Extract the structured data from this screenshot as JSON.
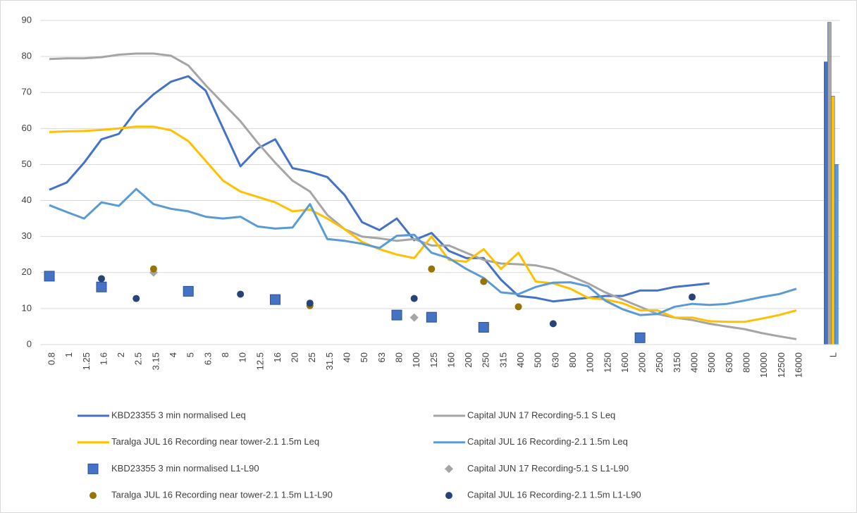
{
  "chart_data": {
    "type": "line",
    "categories": [
      "0.8",
      "1",
      "1.25",
      "1.6",
      "2",
      "2.5",
      "3.15",
      "4",
      "5",
      "6.3",
      "8",
      "10",
      "12.5",
      "16",
      "20",
      "25",
      "31.5",
      "40",
      "50",
      "63",
      "80",
      "100",
      "125",
      "160",
      "200",
      "250",
      "315",
      "400",
      "500",
      "630",
      "800",
      "1000",
      "1250",
      "1600",
      "2000",
      "2500",
      "3150",
      "4000",
      "5000",
      "6300",
      "8000",
      "10000",
      "12500",
      "16000",
      null,
      "L"
    ],
    "ylim": [
      0,
      90
    ],
    "yticks": [
      0,
      10,
      20,
      30,
      40,
      50,
      60,
      70,
      80,
      90
    ],
    "grid": true,
    "last_as_bar": true,
    "series": [
      {
        "name": "KBD23355 3 min normalised Leq",
        "type": "line",
        "color": "#4472c4",
        "values": [
          43,
          45,
          50.5,
          57,
          58.5,
          65,
          69.5,
          73,
          74.5,
          70.5,
          60,
          49.5,
          54.5,
          57,
          49,
          48,
          46.5,
          41.5,
          34,
          31.8,
          35,
          29,
          31,
          26,
          24,
          24,
          18,
          13.5,
          13,
          12,
          12.5,
          13,
          13.5,
          13.5,
          15,
          15,
          16,
          16.5,
          17,
          null,
          null,
          null,
          null,
          null,
          null,
          78.5
        ]
      },
      {
        "name": "Capital JUN 17 Recording-5.1 S Leq",
        "type": "line",
        "color": "#a5a5a5",
        "values": [
          79.3,
          79.5,
          79.5,
          79.8,
          80.5,
          80.8,
          80.8,
          80.2,
          77.5,
          72,
          67,
          62,
          56,
          50.5,
          45.5,
          42.5,
          36,
          32,
          30,
          29.5,
          28.8,
          29.3,
          27.5,
          27.5,
          25.5,
          23.5,
          22.5,
          22.3,
          22,
          21,
          19,
          17,
          14.5,
          12.5,
          10.5,
          8.5,
          7.5,
          6.8,
          5.8,
          5,
          4.3,
          3.2,
          2.3,
          1.5,
          null,
          89.5
        ]
      },
      {
        "name": "Taralga JUL 16 Recording near tower-2.1 1.5m Leq",
        "type": "line",
        "color": "#ffc000",
        "values": [
          59,
          59.2,
          59.3,
          59.6,
          60,
          60.5,
          60.5,
          59.5,
          56.5,
          51,
          45.5,
          42.5,
          41,
          39.5,
          37,
          37.5,
          35,
          32,
          28.5,
          26.5,
          25,
          24,
          30,
          23.5,
          23,
          26.5,
          21,
          25.5,
          17.5,
          17,
          15.5,
          13,
          12.5,
          11.5,
          9.5,
          9.5,
          7.5,
          7.5,
          6.5,
          6.3,
          6.3,
          7.2,
          8.2,
          9.5,
          null,
          69
        ]
      },
      {
        "name": "Capital JUL 16 Recording-2.1 1.5m Leq",
        "type": "line",
        "color": "#5b9bd5",
        "values": [
          38.7,
          36.8,
          35,
          39.5,
          38.5,
          43.2,
          39,
          37.7,
          37,
          35.5,
          35,
          35.5,
          32.8,
          32.2,
          32.5,
          39,
          29.3,
          28.8,
          28,
          26.8,
          30.2,
          30.5,
          25.5,
          24,
          21,
          18.5,
          14.5,
          14,
          16,
          17.2,
          17.3,
          16.2,
          12.2,
          9.8,
          8.2,
          8.5,
          10.5,
          11.3,
          11,
          11.3,
          12.2,
          13.2,
          14,
          15.5,
          null,
          50
        ]
      },
      {
        "name": "KBD23355 3 min normalised L1-L90",
        "type": "scatter",
        "marker": "square",
        "color": "#4472c4",
        "values": [
          19,
          null,
          null,
          16,
          null,
          null,
          null,
          null,
          14.8,
          null,
          null,
          null,
          null,
          12.5,
          null,
          null,
          null,
          null,
          null,
          null,
          8.2,
          null,
          7.6,
          null,
          null,
          4.8,
          null,
          null,
          null,
          null,
          null,
          null,
          null,
          null,
          1.9,
          null,
          null,
          null,
          null,
          null,
          null,
          null,
          null,
          null,
          null,
          null
        ]
      },
      {
        "name": "Capital JUN 17 Recording-5.1 S L1-L90",
        "type": "scatter",
        "marker": "diamond",
        "color": "#a5a5a5",
        "values": [
          null,
          null,
          null,
          null,
          null,
          null,
          20,
          null,
          null,
          null,
          null,
          null,
          null,
          null,
          null,
          null,
          null,
          null,
          null,
          null,
          null,
          7.5,
          null,
          null,
          null,
          null,
          null,
          null,
          null,
          null,
          null,
          null,
          null,
          null,
          null,
          null,
          null,
          null,
          null,
          null,
          null,
          null,
          null,
          null,
          null,
          null
        ]
      },
      {
        "name": "Taralga JUL 16 Recording near tower-2.1 1.5m L1-L90",
        "type": "scatter",
        "marker": "circle",
        "color": "#997300",
        "values": [
          null,
          null,
          null,
          null,
          null,
          null,
          21,
          null,
          null,
          null,
          null,
          null,
          null,
          null,
          null,
          10.8,
          null,
          null,
          null,
          null,
          null,
          null,
          21,
          null,
          null,
          17.5,
          null,
          10.5,
          null,
          null,
          null,
          null,
          null,
          null,
          null,
          null,
          null,
          null,
          null,
          null,
          null,
          null,
          null,
          null,
          null,
          null
        ]
      },
      {
        "name": "Capital JUL 16 Recording-2.1 1.5m L1-L90",
        "type": "scatter",
        "marker": "circle",
        "color": "#264478",
        "values": [
          null,
          null,
          null,
          18.3,
          null,
          12.8,
          null,
          null,
          null,
          null,
          null,
          14,
          null,
          null,
          null,
          11.5,
          null,
          null,
          null,
          null,
          null,
          12.8,
          null,
          null,
          null,
          null,
          null,
          null,
          null,
          5.8,
          null,
          null,
          null,
          null,
          null,
          null,
          null,
          13.2,
          null,
          null,
          null,
          null,
          null,
          null,
          null,
          null
        ]
      }
    ]
  }
}
